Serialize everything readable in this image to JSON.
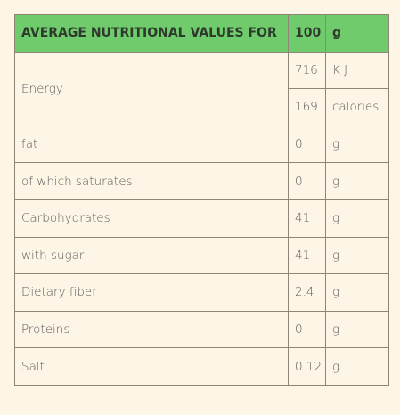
{
  "header": [
    "AVERAGE NUTRITIONAL VALUES FOR",
    100,
    "g"
  ],
  "energy": {
    "label": "Energy",
    "rows": [
      [
        716,
        "K J"
      ],
      [
        169,
        "calories"
      ]
    ]
  },
  "rows": [
    [
      "fat",
      0,
      "g"
    ],
    [
      "of which saturates",
      0,
      "g"
    ],
    [
      "Carbohydrates",
      41,
      "g"
    ],
    [
      "with sugar",
      41,
      "g"
    ],
    [
      "Dietary fiber",
      2.4,
      "g"
    ],
    [
      "Proteins",
      0,
      "g"
    ],
    [
      "Salt",
      0.12,
      "g"
    ]
  ]
}
